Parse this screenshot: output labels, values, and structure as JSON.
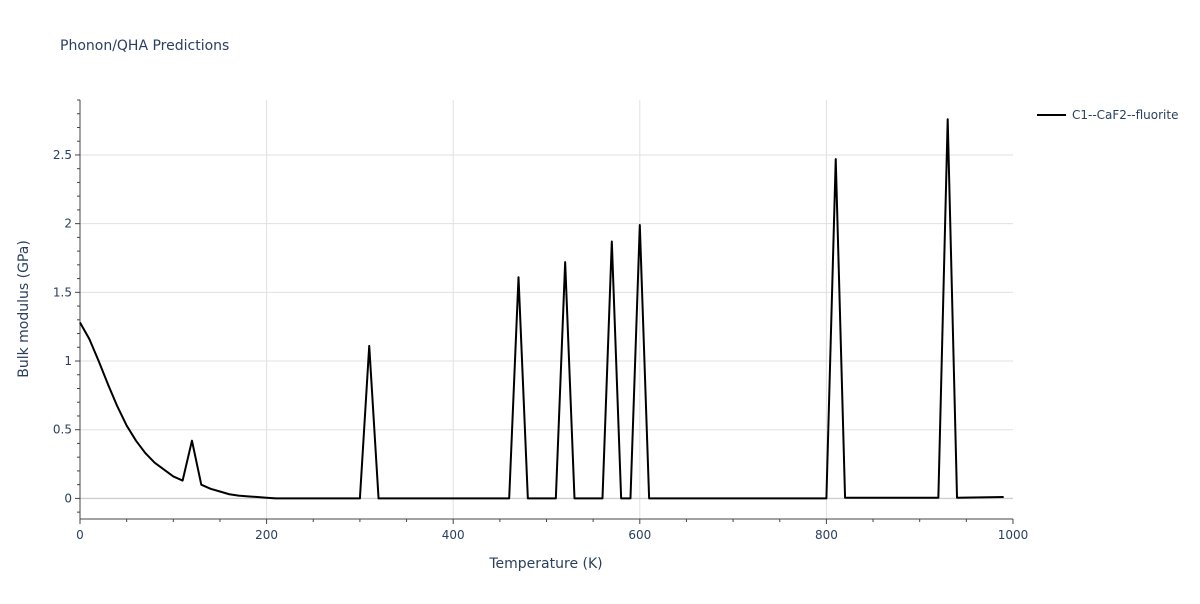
{
  "chart_data": {
    "type": "line",
    "title": "Phonon/QHA Predictions",
    "xlabel": "Temperature (K)",
    "ylabel": "Bulk modulus (GPa)",
    "xlim": [
      0,
      1000
    ],
    "ylim": [
      -0.15,
      2.9
    ],
    "xticks": [
      0,
      200,
      400,
      600,
      800,
      1000
    ],
    "xtick_labels": [
      "0",
      "200",
      "400",
      "600",
      "800",
      "1000"
    ],
    "yticks": [
      0,
      0.5,
      1,
      1.5,
      2,
      2.5
    ],
    "ytick_labels": [
      "0",
      "0.5",
      "1",
      "1.5",
      "2",
      "2.5"
    ],
    "grid": true,
    "legend": "top-right",
    "series": [
      {
        "name": "C1--CaF2--fluorite",
        "color": "#000000",
        "x": [
          0,
          10,
          20,
          30,
          40,
          50,
          60,
          70,
          80,
          90,
          100,
          110,
          120,
          130,
          140,
          150,
          160,
          170,
          180,
          190,
          200,
          210,
          300,
          310,
          320,
          460,
          470,
          480,
          510,
          520,
          530,
          560,
          570,
          580,
          590,
          600,
          610,
          800,
          810,
          820,
          920,
          930,
          940,
          990
        ],
        "y": [
          1.28,
          1.16,
          1.0,
          0.83,
          0.67,
          0.53,
          0.42,
          0.33,
          0.26,
          0.21,
          0.16,
          0.13,
          0.42,
          0.1,
          0.07,
          0.05,
          0.03,
          0.02,
          0.015,
          0.01,
          0.005,
          0.0,
          0.0,
          1.11,
          0.0,
          0.0,
          1.61,
          0.0,
          0.0,
          1.72,
          0.0,
          0.0,
          1.87,
          0.0,
          0.0,
          1.99,
          0.0,
          0.0,
          2.47,
          0.005,
          0.005,
          2.76,
          0.005,
          0.01
        ]
      }
    ]
  }
}
